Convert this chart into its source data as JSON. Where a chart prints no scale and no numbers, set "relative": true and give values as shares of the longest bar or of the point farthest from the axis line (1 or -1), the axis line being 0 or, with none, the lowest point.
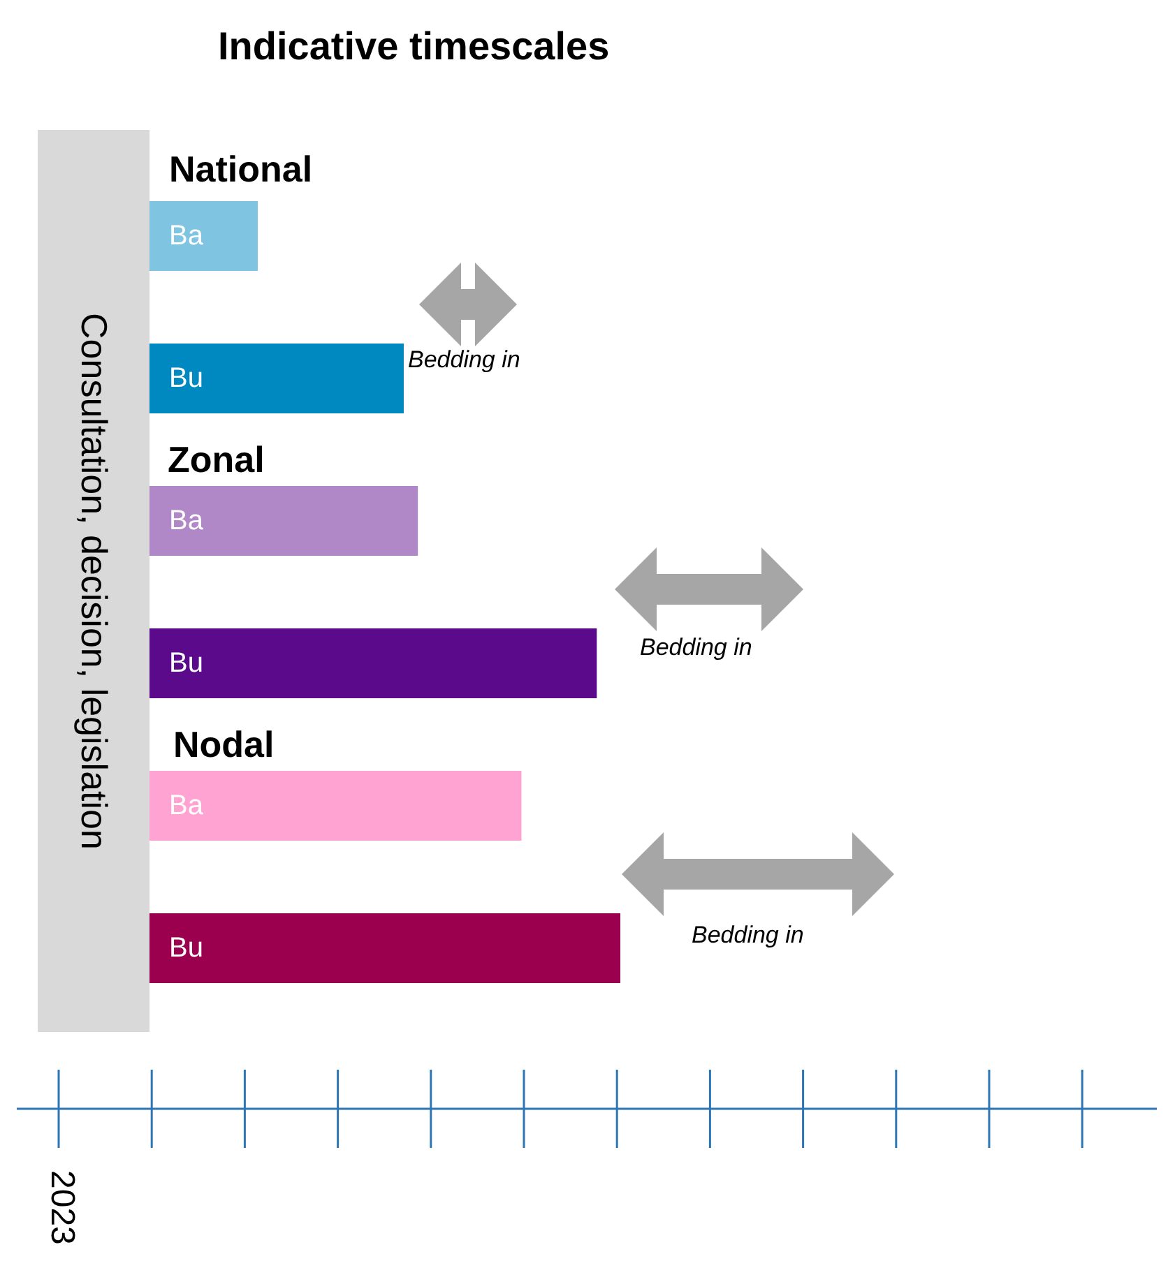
{
  "chart_data": {
    "type": "bar",
    "orientation": "horizontal",
    "relative": true,
    "title": "Indicative timescales",
    "categories": [
      "Ba",
      "Bu",
      "Ba",
      "Bu",
      "Ba",
      "Bu"
    ],
    "values": [
      0.23,
      0.54,
      0.57,
      0.95,
      0.79,
      1
    ],
    "colors": [
      "#7fc4e0",
      "#0088c0",
      "#b088c8",
      "#5c0a8c",
      "#ffa3d3",
      "#9b004f"
    ],
    "annotations": [
      "National",
      "Zonal",
      "Nodal",
      "Bedding in",
      "Bedding in",
      "Bedding in",
      "Consultation, decision, legislation",
      "2023"
    ]
  }
}
